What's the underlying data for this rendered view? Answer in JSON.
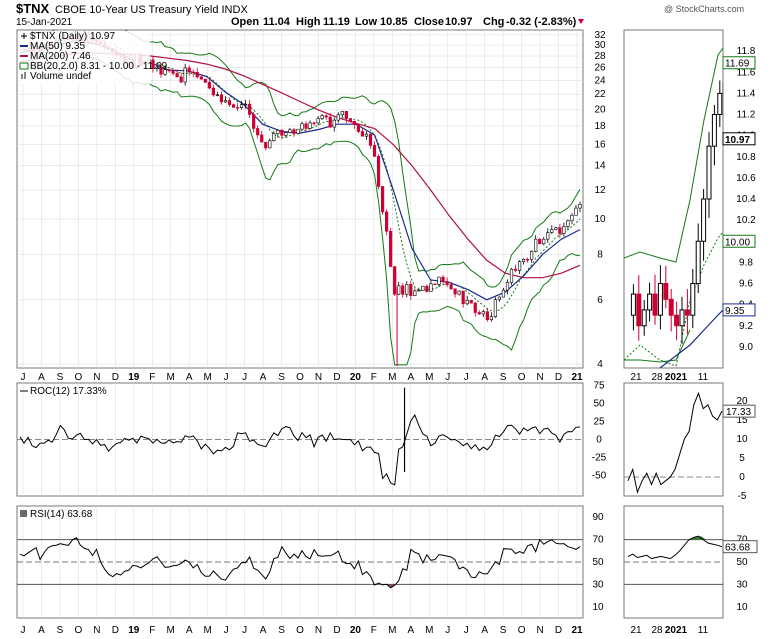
{
  "header": {
    "symbol": "$TNX",
    "name": "CBOE 10-Year US Treasury Yield INDX",
    "date": "15-Jan-2021",
    "watermark": "@ StockCharts.com",
    "open_label": "Open",
    "open": "11.04",
    "high_label": "High",
    "high": "11.19",
    "low_label": "Low",
    "low": "10.85",
    "close_label": "Close",
    "close": "10.97",
    "chg_label": "Chg",
    "chg": "-0.32 (-2.83%)"
  },
  "legend": {
    "price": "$TNX (Daily) 10.97",
    "ma50": "MA(50) 9.35",
    "ma200": "MA(200) 7.46",
    "bb": "BB(20,2.0) 8.31 - 10.00 - 11.69",
    "volume": "Volume undef"
  },
  "roc_legend": "ROC(12) 17.33%",
  "rsi_legend": "RSI(14) 63.68",
  "colors": {
    "up": "#000000",
    "down": "#cc0033",
    "ma50": "#1c2a8c",
    "ma200": "#b01040",
    "bb": "#157a15",
    "rsi_fill_high": "#3a7a3a",
    "rsi_fill_low": "#8a4a4a",
    "grid": "#d8d8d8"
  },
  "chart_data": [
    {
      "type": "line",
      "title": "$TNX CBOE 10-Year US Treasury Yield INDX",
      "scale": "log",
      "ylim": [
        3.9,
        33
      ],
      "y_ticks": [
        "32",
        "30",
        "28",
        "26",
        "24",
        "22",
        "20",
        "18",
        "16",
        "14",
        "12",
        "10",
        "8",
        "6",
        "4"
      ],
      "x_ticks": [
        "J",
        "A",
        "S",
        "O",
        "N",
        "D",
        "19",
        "F",
        "M",
        "A",
        "M",
        "J",
        "J",
        "A",
        "S",
        "O",
        "N",
        "D",
        "20",
        "F",
        "M",
        "A",
        "M",
        "J",
        "J",
        "A",
        "S",
        "O",
        "N",
        "D",
        "21"
      ],
      "series": [
        {
          "name": "$TNX (Daily)",
          "x": [
            "Jul-18",
            "Aug-18",
            "Sep-18",
            "Oct-18",
            "Nov-18",
            "Dec-18",
            "Jan-19",
            "Feb-19",
            "Mar-19",
            "Apr-19",
            "May-19",
            "Jun-19",
            "Jul-19",
            "Aug-19",
            "Sep-19",
            "Oct-19",
            "Nov-19",
            "Dec-19",
            "Jan-20",
            "Feb-20",
            "Mar-20",
            "Apr-20",
            "May-20",
            "Jun-20",
            "Jul-20",
            "Aug-20",
            "Sep-20",
            "Oct-20",
            "Nov-20",
            "Dec-20",
            "Jan-21"
          ],
          "values": [
            28.5,
            29.0,
            30.5,
            32.0,
            31.0,
            28.0,
            27.0,
            26.5,
            25.0,
            25.5,
            23.5,
            20.5,
            20.3,
            15.5,
            17.5,
            17.8,
            18.5,
            19.0,
            18.0,
            15.0,
            6.5,
            6.3,
            6.5,
            6.7,
            5.8,
            5.3,
            6.7,
            7.8,
            8.8,
            9.4,
            10.97
          ]
        },
        {
          "name": "MA(50)",
          "values": [
            28.6,
            29.0,
            30.0,
            30.8,
            30.3,
            29.0,
            27.5,
            26.8,
            25.6,
            25.5,
            24.6,
            22.3,
            20.6,
            18.2,
            17.4,
            17.2,
            17.6,
            18.2,
            18.2,
            17.0,
            12.0,
            8.3,
            6.8,
            6.7,
            6.4,
            6.0,
            6.3,
            7.0,
            8.0,
            8.8,
            9.35
          ]
        },
        {
          "name": "MA(200)",
          "values": [
            27.0,
            27.5,
            28.0,
            28.5,
            28.5,
            28.4,
            28.3,
            28.0,
            27.6,
            27.2,
            26.6,
            25.8,
            24.7,
            23.4,
            22.2,
            21.0,
            19.9,
            19.0,
            18.3,
            17.7,
            16.0,
            14.0,
            12.0,
            10.2,
            8.8,
            7.7,
            7.1,
            6.9,
            6.9,
            7.1,
            7.46
          ]
        }
      ]
    },
    {
      "type": "line",
      "title": "ROC(12)",
      "ylim": [
        -62,
        80
      ],
      "y_ticks": [
        "75",
        "50",
        "25",
        "0",
        "-25",
        "-50"
      ],
      "series": [
        {
          "name": "ROC(12)",
          "values": [
            2,
            -4,
            6,
            4,
            -6,
            -10,
            3,
            -2,
            -6,
            4,
            -10,
            -15,
            8,
            -12,
            15,
            5,
            3,
            4,
            -3,
            -25,
            -40,
            35,
            -10,
            6,
            -8,
            -12,
            15,
            10,
            12,
            5,
            17.33
          ]
        }
      ]
    },
    {
      "type": "line",
      "title": "RSI(14)",
      "ylim": [
        0,
        100
      ],
      "y_ticks": [
        "90",
        "70",
        "50",
        "30",
        "10"
      ],
      "series": [
        {
          "name": "RSI(14)",
          "values": [
            55,
            60,
            65,
            70,
            58,
            38,
            45,
            52,
            44,
            50,
            40,
            36,
            55,
            33,
            60,
            55,
            57,
            58,
            48,
            30,
            25,
            58,
            50,
            58,
            40,
            38,
            62,
            60,
            65,
            68,
            63.68
          ]
        }
      ]
    },
    {
      "type": "line",
      "title": "zoom",
      "ylim": [
        8.8,
        12.0
      ],
      "y_ticks": [
        "11.8",
        "11.6",
        "11.4",
        "11.2",
        "11.0",
        "10.8",
        "10.6",
        "10.4",
        "10.2",
        "10.0",
        "9.8",
        "9.6",
        "9.4",
        "9.2",
        "9.0"
      ],
      "x_ticks": [
        "21",
        "28",
        "2021",
        "11"
      ],
      "markers": [
        "11.69",
        "10.97",
        "10.00",
        "9.35"
      ],
      "roc_ticks": [
        "20",
        "15",
        "10",
        "5",
        "0",
        "-5"
      ],
      "roc_marker": "17.33",
      "rsi_ticks": [
        "70",
        "50",
        "30",
        "10"
      ],
      "rsi_marker": "63.68"
    }
  ]
}
